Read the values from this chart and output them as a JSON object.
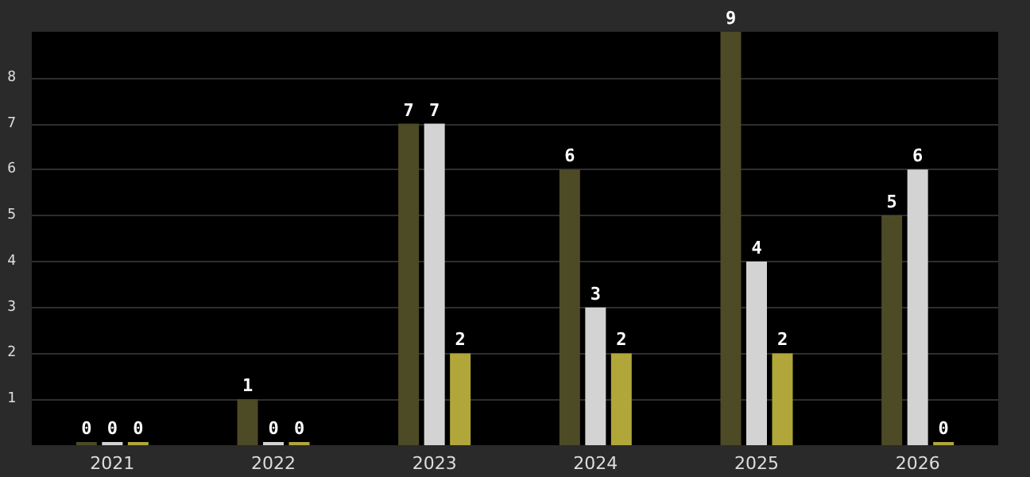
{
  "chart_data": {
    "type": "bar",
    "categories": [
      "2021",
      "2022",
      "2023",
      "2024",
      "2025",
      "2026"
    ],
    "series": [
      {
        "color": "#4d4a26",
        "values": [
          0,
          1,
          7,
          6,
          9,
          5
        ]
      },
      {
        "color": "#d3d3d3",
        "values": [
          0,
          0,
          7,
          3,
          4,
          6
        ]
      },
      {
        "color": "#b0a63a",
        "values": [
          0,
          0,
          2,
          2,
          2,
          0
        ]
      }
    ],
    "ylim": [
      0,
      9
    ],
    "yticks": [
      1,
      2,
      3,
      4,
      5,
      6,
      7,
      8
    ],
    "grid": "y",
    "data_labels": true
  }
}
